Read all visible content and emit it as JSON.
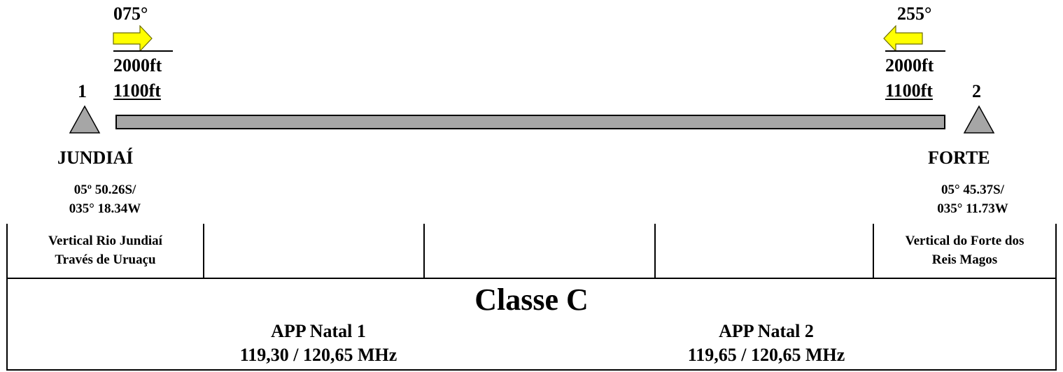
{
  "route": {
    "left": {
      "heading": "075°",
      "alt_upper": "2000ft",
      "alt_lower": "1100ft",
      "waypoint_number": "1",
      "waypoint_name": "JUNDIAÍ",
      "coord_line1": "05º 50.26S/",
      "coord_line2": "035° 18.34W"
    },
    "right": {
      "heading": "255°",
      "alt_upper": "2000ft",
      "alt_lower": "1100ft",
      "waypoint_number": "2",
      "waypoint_name": "FORTE",
      "coord_line1": "05° 45.37S/",
      "coord_line2": "035° 11.73W"
    }
  },
  "table": {
    "cells": [
      {
        "line1": "Vertical Rio Jundiaí",
        "line2": "Través de Uruaçu"
      },
      {
        "line1": "",
        "line2": ""
      },
      {
        "line1": "",
        "line2": ""
      },
      {
        "line1": "",
        "line2": ""
      },
      {
        "line1": "Vertical do Forte dos",
        "line2": "Reis Magos"
      }
    ],
    "airspace_class": "Classe C",
    "app_left": {
      "name": "APP Natal 1",
      "freq": "119,30 / 120,65 MHz"
    },
    "app_right": {
      "name": "APP Natal 2",
      "freq": "119,65 / 120,65 MHz"
    }
  },
  "colors": {
    "arrow_fill": "#ffff00",
    "waypoint_fill": "#a6a6a6",
    "route_bar_fill": "#a6a6a6"
  }
}
